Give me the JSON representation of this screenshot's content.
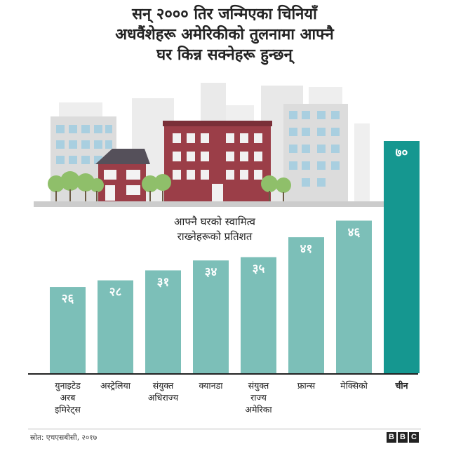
{
  "title_lines": [
    "सन् २००० तिर जन्मिएका चिनियाँ",
    "अधवैंशेहरू अमेरिकीको तुलनामा आफ्नै",
    "घर किन्न सक्नेहरू हुन्छन्"
  ],
  "ylabel_lines": [
    "आफ्नै घरको स्वामित्व",
    "राख्नेहरूको प्रतिशत"
  ],
  "source": "स्रोत: एचएसबीसी, २०१७",
  "logo_letters": [
    "B",
    "B",
    "C"
  ],
  "colors": {
    "bar": "#7cbfb8",
    "bar_highlight": "#159790",
    "baseline": "#222222",
    "text": "#222222"
  },
  "chart_data": {
    "type": "bar",
    "title": "सन् २००० तिर जन्मिएका चिनियाँ अधवैंशेहरू अमेरिकीको तुलनामा आफ्नै घर किन्न सक्नेहरू हुन्छन्",
    "ylabel": "आफ्नै घरको स्वामित्व राख्नेहरूको प्रतिशत",
    "xlabel": "",
    "categories": [
      [
        "युनाइटेड",
        "अरब",
        "इमिरेट्स"
      ],
      [
        "अस्ट्रेलिया"
      ],
      [
        "संयुक्त",
        "अधिराज्य"
      ],
      [
        "क्यानडा"
      ],
      [
        "संयुक्त",
        "राज्य",
        "अमेरिका"
      ],
      [
        "फ्रान्स"
      ],
      [
        "मेक्सिको"
      ],
      [
        "चीन"
      ]
    ],
    "values": [
      26,
      28,
      31,
      34,
      35,
      41,
      46,
      70
    ],
    "value_labels": [
      "२६",
      "२८",
      "३१",
      "३४",
      "३५",
      "४१",
      "४६",
      "७०"
    ],
    "highlight_index": 7,
    "ylim": [
      0,
      70
    ],
    "grid": false
  }
}
